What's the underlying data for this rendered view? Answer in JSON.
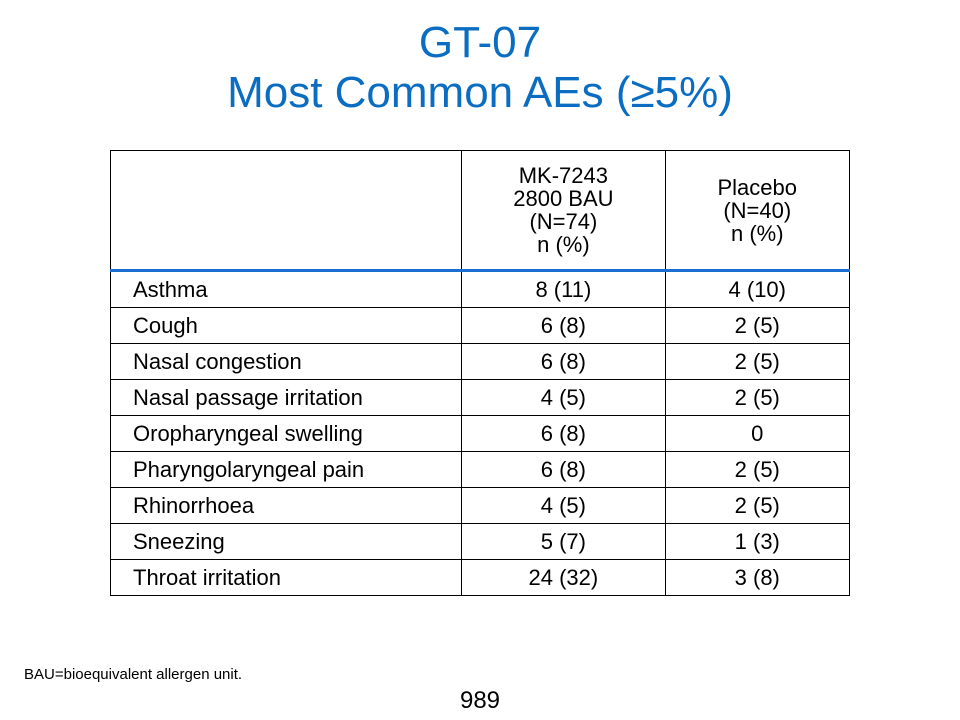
{
  "slide": {
    "title_line1": "GT-07",
    "title_line2": "Most Common AEs (≥5%)",
    "footnote": "BAU=bioequivalent allergen unit.",
    "page_number": "989"
  },
  "table": {
    "header_a": [
      "MK-7243",
      "2800 BAU",
      "(N=74)",
      "n (%)"
    ],
    "header_b": [
      "Placebo",
      "(N=40)",
      "n (%)"
    ],
    "rows": [
      {
        "label": "Asthma",
        "a": "8 (11)",
        "b": "4 (10)"
      },
      {
        "label": "Cough",
        "a": "6 (8)",
        "b": "2 (5)"
      },
      {
        "label": "Nasal congestion",
        "a": "6 (8)",
        "b": "2 (5)"
      },
      {
        "label": "Nasal passage irritation",
        "a": "4 (5)",
        "b": "2 (5)"
      },
      {
        "label": "Oropharyngeal swelling",
        "a": "6 (8)",
        "b": "0"
      },
      {
        "label": "Pharyngolaryngeal pain",
        "a": "6 (8)",
        "b": "2 (5)"
      },
      {
        "label": "Rhinorrhoea",
        "a": "4 (5)",
        "b": "2 (5)"
      },
      {
        "label": "Sneezing",
        "a": "5 (7)",
        "b": "1 (3)"
      },
      {
        "label": "Throat irritation",
        "a": "24 (32)",
        "b": "3 (8)"
      }
    ]
  }
}
